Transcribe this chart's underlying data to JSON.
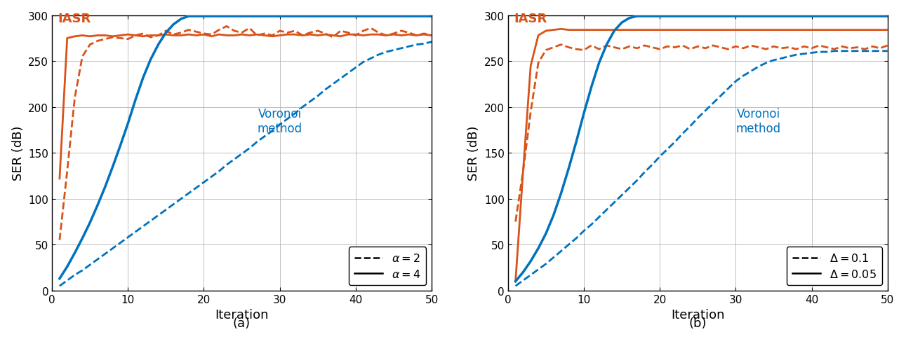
{
  "orange_color": "#D95319",
  "blue_color": "#0072BD",
  "background_color": "#ffffff",
  "grid_color": "#b0b0b0",
  "xlim": [
    0,
    50
  ],
  "ylim": [
    0,
    300
  ],
  "yticks": [
    0,
    50,
    100,
    150,
    200,
    250,
    300
  ],
  "xticks": [
    0,
    10,
    20,
    30,
    40,
    50
  ],
  "xlabel": "Iteration",
  "ylabel": "SER (dB)",
  "label_a": "(a)",
  "label_b": "(b)",
  "iasr_label": "IASR",
  "voronoi_label": "Voronoi\nmethod",
  "legend_a": [
    {
      "label": "$\\alpha = 2$",
      "ls": "--"
    },
    {
      "label": "$\\alpha = 4$",
      "ls": "-"
    }
  ],
  "legend_b": [
    {
      "label": "$\\Delta = 0.1$",
      "ls": "--"
    },
    {
      "label": "$\\Delta = 0.05$",
      "ls": "-"
    }
  ],
  "subplot_a": {
    "iasr_dashed_x": [
      1,
      2,
      3,
      4,
      5,
      6,
      7,
      8,
      9,
      10,
      11,
      12,
      13,
      14,
      15,
      16,
      17,
      18,
      19,
      20,
      21,
      22,
      23,
      24,
      25,
      26,
      27,
      28,
      29,
      30,
      31,
      32,
      33,
      34,
      35,
      36,
      37,
      38,
      39,
      40,
      41,
      42,
      43,
      44,
      45,
      46,
      47,
      48,
      49,
      50
    ],
    "iasr_dashed_y": [
      55,
      130,
      210,
      255,
      268,
      272,
      274,
      276,
      275,
      274,
      278,
      280,
      276,
      278,
      283,
      279,
      281,
      284,
      282,
      280,
      279,
      284,
      288,
      283,
      281,
      286,
      278,
      280,
      278,
      283,
      281,
      283,
      278,
      281,
      283,
      280,
      276,
      283,
      281,
      278,
      283,
      286,
      281,
      278,
      280,
      283,
      281,
      278,
      280,
      278
    ],
    "iasr_solid_x": [
      1,
      2,
      3,
      4,
      5,
      6,
      7,
      8,
      9,
      10,
      11,
      12,
      13,
      14,
      15,
      16,
      17,
      18,
      19,
      20,
      21,
      22,
      23,
      24,
      25,
      26,
      27,
      28,
      29,
      30,
      31,
      32,
      33,
      34,
      35,
      36,
      37,
      38,
      39,
      40,
      41,
      42,
      43,
      44,
      45,
      46,
      47,
      48,
      49,
      50
    ],
    "iasr_solid_y": [
      122,
      275,
      277,
      278,
      277,
      278,
      278,
      277,
      278,
      279,
      278,
      277,
      278,
      278,
      279,
      278,
      278,
      279,
      278,
      279,
      277,
      279,
      278,
      278,
      279,
      278,
      279,
      278,
      277,
      278,
      279,
      279,
      278,
      279,
      278,
      279,
      278,
      277,
      279,
      279,
      278,
      279,
      279,
      278,
      279,
      278,
      279,
      278,
      279,
      278
    ],
    "voronoi_dashed_x": [
      1,
      2,
      3,
      4,
      5,
      6,
      7,
      8,
      9,
      10,
      11,
      12,
      13,
      14,
      15,
      16,
      17,
      18,
      19,
      20,
      21,
      22,
      23,
      24,
      25,
      26,
      27,
      28,
      29,
      30,
      31,
      32,
      33,
      34,
      35,
      36,
      37,
      38,
      39,
      40,
      41,
      42,
      43,
      44,
      45,
      46,
      47,
      48,
      49,
      50
    ],
    "voronoi_dashed_y": [
      5,
      11,
      17,
      22,
      28,
      34,
      40,
      46,
      52,
      58,
      64,
      70,
      76,
      82,
      88,
      94,
      100,
      106,
      112,
      118,
      124,
      130,
      137,
      143,
      149,
      155,
      162,
      168,
      174,
      181,
      187,
      193,
      200,
      206,
      212,
      219,
      225,
      231,
      237,
      243,
      249,
      253,
      257,
      260,
      262,
      264,
      266,
      268,
      269,
      271
    ],
    "voronoi_solid_x": [
      1,
      2,
      3,
      4,
      5,
      6,
      7,
      8,
      9,
      10,
      11,
      12,
      13,
      14,
      15,
      16,
      17,
      18,
      19,
      20,
      21,
      22,
      23,
      24,
      25,
      26,
      27,
      28,
      29,
      30,
      31,
      32,
      33,
      34,
      35,
      36,
      37,
      38,
      39,
      40,
      41,
      42,
      43,
      44,
      45,
      46,
      47,
      48,
      49,
      50
    ],
    "voronoi_solid_y": [
      13,
      26,
      41,
      57,
      74,
      93,
      113,
      135,
      158,
      182,
      208,
      232,
      252,
      268,
      281,
      290,
      296,
      299,
      299,
      299,
      299,
      299,
      299,
      299,
      299,
      299,
      299,
      299,
      299,
      299,
      299,
      299,
      299,
      299,
      299,
      299,
      299,
      299,
      299,
      299,
      299,
      299,
      299,
      299,
      299,
      299,
      299,
      299,
      299,
      299
    ]
  },
  "subplot_b": {
    "iasr_dashed_x": [
      1,
      2,
      3,
      4,
      5,
      6,
      7,
      8,
      9,
      10,
      11,
      12,
      13,
      14,
      15,
      16,
      17,
      18,
      19,
      20,
      21,
      22,
      23,
      24,
      25,
      26,
      27,
      28,
      29,
      30,
      31,
      32,
      33,
      34,
      35,
      36,
      37,
      38,
      39,
      40,
      41,
      42,
      43,
      44,
      45,
      46,
      47,
      48,
      49,
      50
    ],
    "iasr_dashed_y": [
      75,
      130,
      195,
      248,
      262,
      265,
      268,
      265,
      263,
      262,
      267,
      263,
      267,
      265,
      263,
      266,
      264,
      267,
      265,
      263,
      266,
      265,
      267,
      263,
      266,
      264,
      267,
      265,
      263,
      266,
      264,
      267,
      265,
      263,
      266,
      264,
      265,
      263,
      266,
      264,
      267,
      265,
      263,
      266,
      264,
      265,
      263,
      266,
      264,
      267
    ],
    "iasr_solid_x": [
      1,
      2,
      3,
      4,
      5,
      6,
      7,
      8,
      9,
      10,
      11,
      12,
      13,
      14,
      15,
      16,
      17,
      18,
      19,
      20,
      21,
      22,
      23,
      24,
      25,
      26,
      27,
      28,
      29,
      30,
      31,
      32,
      33,
      34,
      35,
      36,
      37,
      38,
      39,
      40,
      41,
      42,
      43,
      44,
      45,
      46,
      47,
      48,
      49,
      50
    ],
    "iasr_solid_y": [
      10,
      130,
      245,
      278,
      283,
      284,
      285,
      284,
      284,
      284,
      284,
      284,
      284,
      284,
      284,
      284,
      284,
      284,
      284,
      284,
      284,
      284,
      284,
      284,
      284,
      284,
      284,
      284,
      284,
      284,
      284,
      284,
      284,
      284,
      284,
      284,
      284,
      284,
      284,
      284,
      284,
      284,
      284,
      284,
      284,
      284,
      284,
      284,
      284,
      284
    ],
    "voronoi_dashed_x": [
      1,
      2,
      3,
      4,
      5,
      6,
      7,
      8,
      9,
      10,
      11,
      12,
      13,
      14,
      15,
      16,
      17,
      18,
      19,
      20,
      21,
      22,
      23,
      24,
      25,
      26,
      27,
      28,
      29,
      30,
      31,
      32,
      33,
      34,
      35,
      36,
      37,
      38,
      39,
      40,
      41,
      42,
      43,
      44,
      45,
      46,
      47,
      48,
      49,
      50
    ],
    "voronoi_dashed_y": [
      5,
      11,
      17,
      23,
      29,
      36,
      43,
      50,
      57,
      65,
      72,
      80,
      88,
      96,
      104,
      112,
      120,
      129,
      137,
      146,
      154,
      162,
      171,
      179,
      188,
      196,
      204,
      212,
      220,
      228,
      234,
      239,
      244,
      248,
      251,
      253,
      255,
      257,
      258,
      259,
      260,
      260,
      261,
      261,
      261,
      261,
      261,
      261,
      261,
      261
    ],
    "voronoi_solid_x": [
      1,
      2,
      3,
      4,
      5,
      6,
      7,
      8,
      9,
      10,
      11,
      12,
      13,
      14,
      15,
      16,
      17,
      18,
      19,
      20,
      21,
      22,
      23,
      24,
      25,
      26,
      27,
      28,
      29,
      30,
      31,
      32,
      33,
      34,
      35,
      36,
      37,
      38,
      39,
      40,
      41,
      42,
      43,
      44,
      45,
      46,
      47,
      48,
      49,
      50
    ],
    "voronoi_solid_y": [
      10,
      20,
      32,
      46,
      62,
      82,
      106,
      133,
      162,
      193,
      222,
      248,
      268,
      283,
      292,
      297,
      299,
      299,
      299,
      299,
      299,
      299,
      299,
      299,
      299,
      299,
      299,
      299,
      299,
      299,
      299,
      299,
      299,
      299,
      299,
      299,
      299,
      299,
      299,
      299,
      299,
      299,
      299,
      299,
      299,
      299,
      299,
      299,
      299,
      299
    ]
  }
}
